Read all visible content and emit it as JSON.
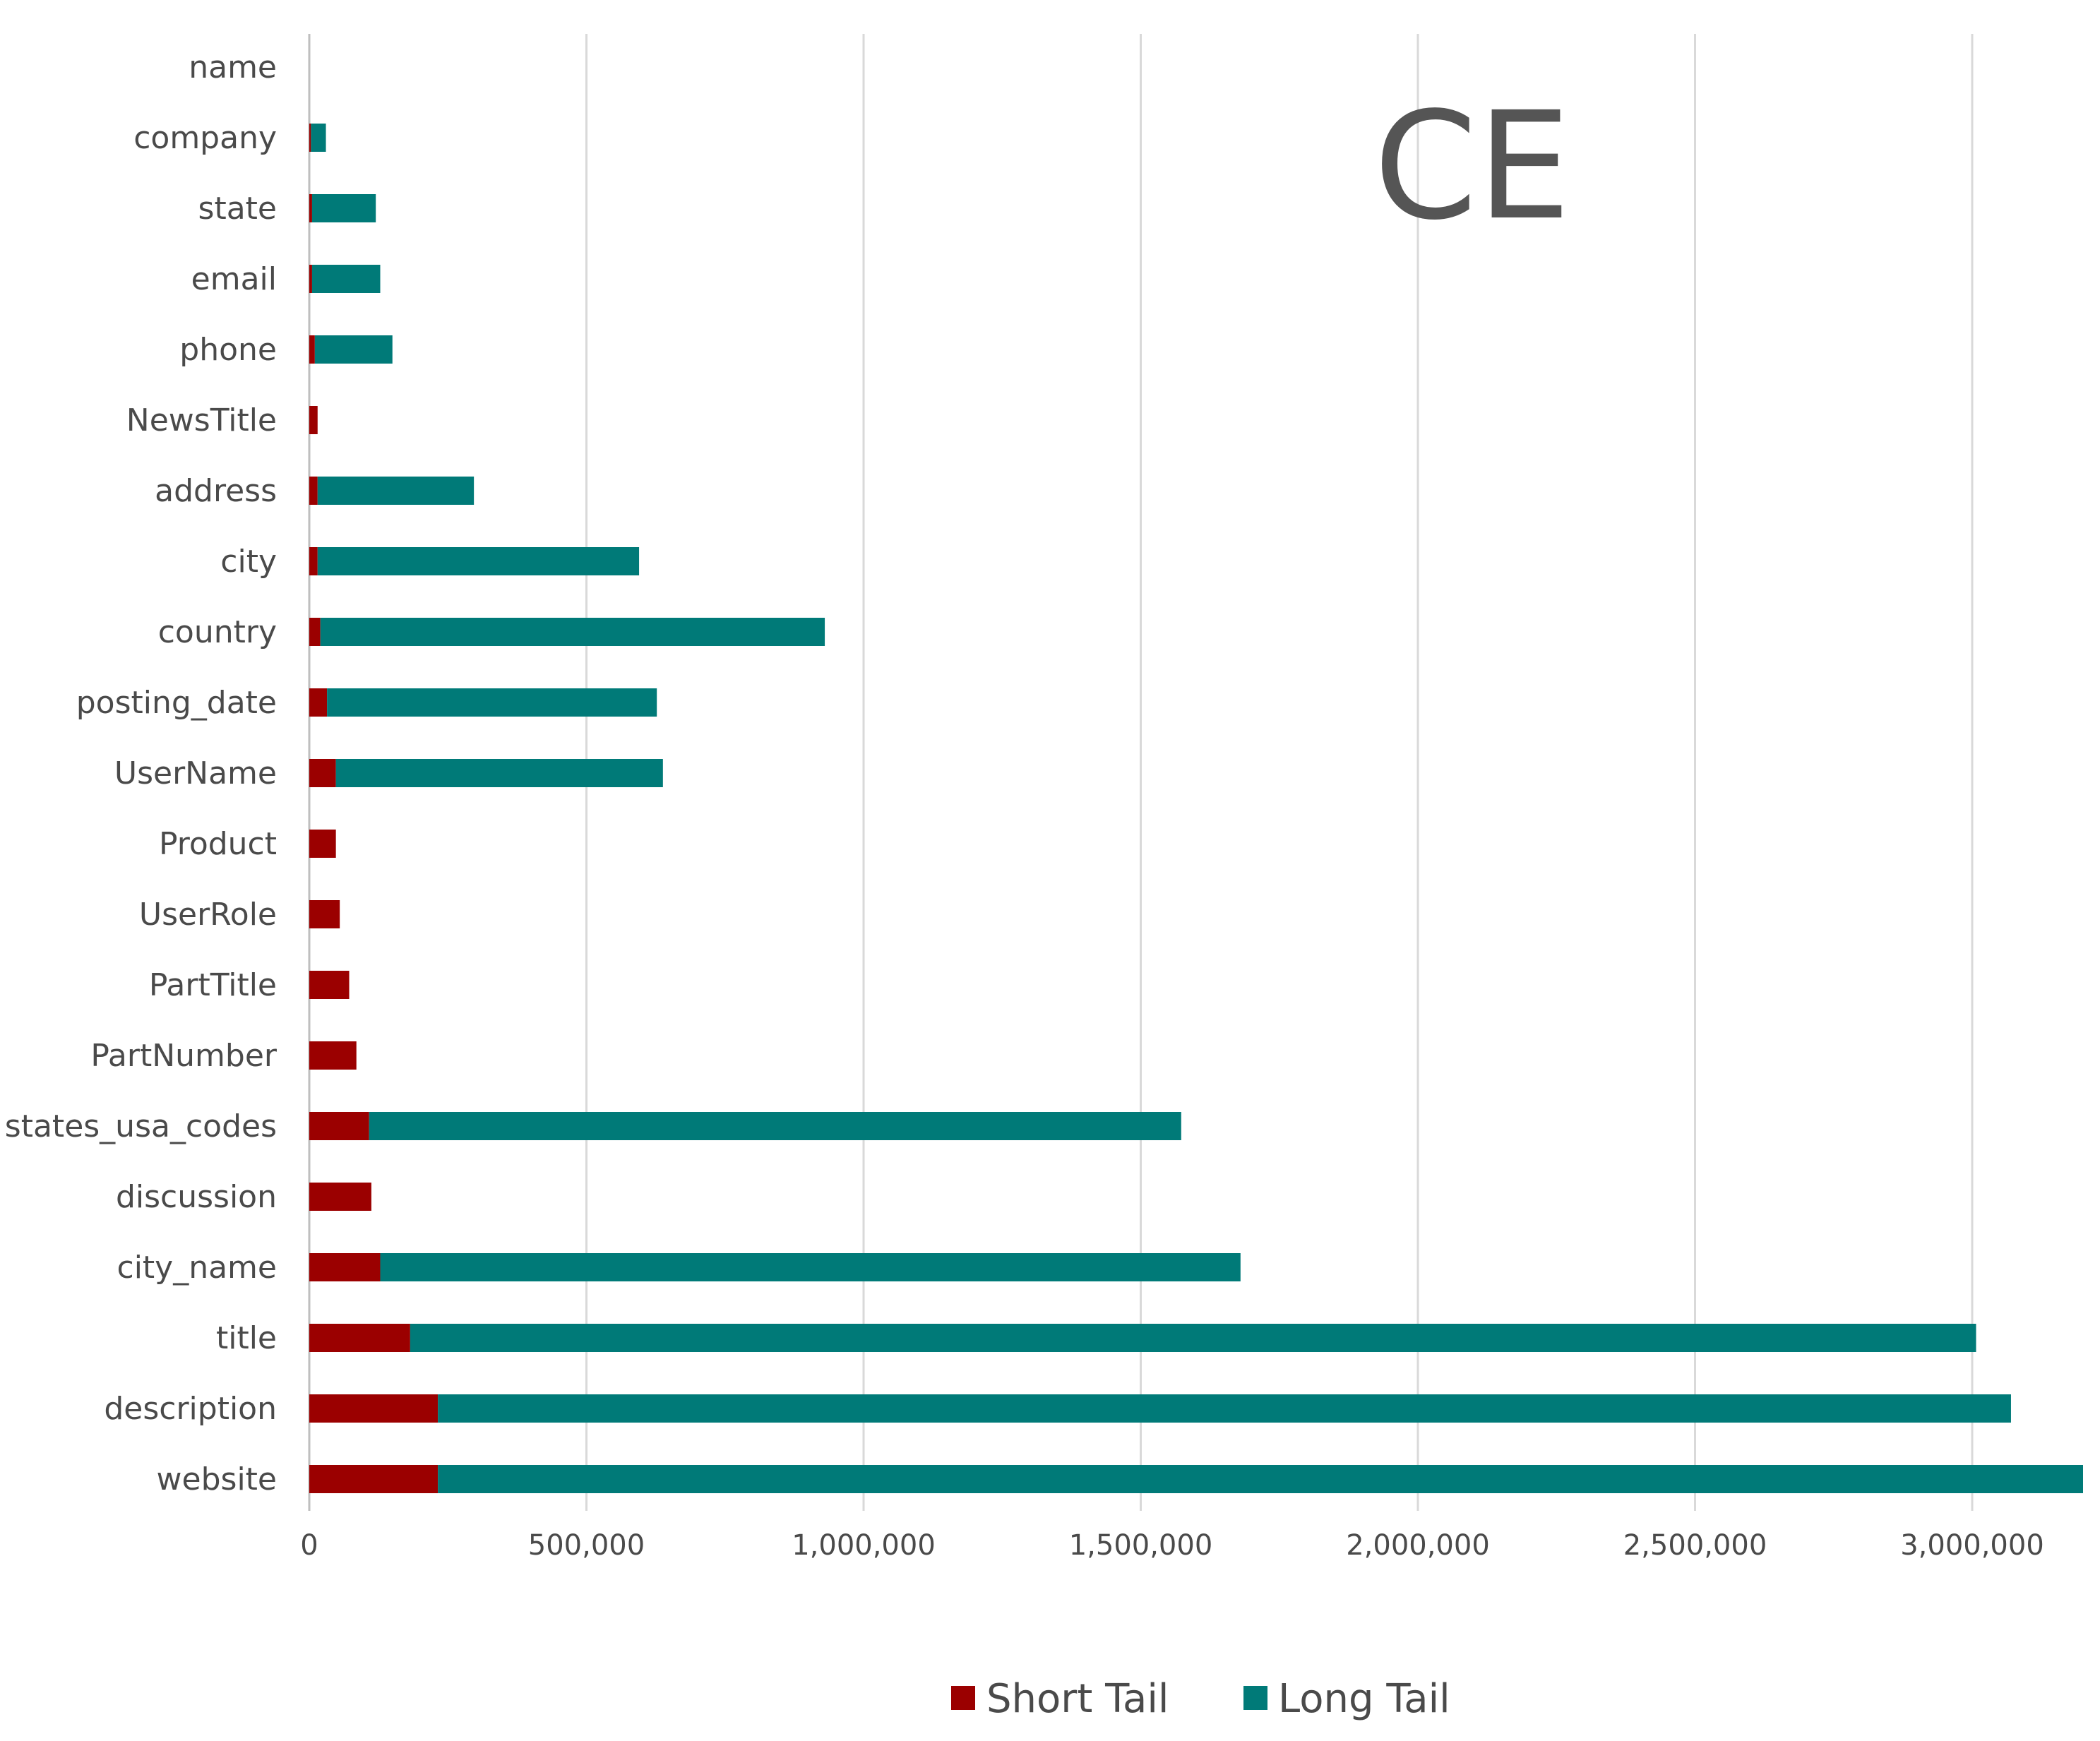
{
  "chart_data": {
    "type": "bar",
    "orientation": "horizontal",
    "stacked": true,
    "title": "CE",
    "xlabel": "",
    "ylabel": "",
    "xlim": [
      0,
      3200000
    ],
    "x_ticks": [
      0,
      500000,
      1000000,
      1500000,
      2000000,
      2500000,
      3000000
    ],
    "x_tick_labels": [
      "0",
      "500,000",
      "1,000,000",
      "1,500,000",
      "2,000,000",
      "2,500,000",
      "3,000,000"
    ],
    "grid": true,
    "legend_position": "bottom",
    "categories": [
      "name",
      "company",
      "state",
      "email",
      "phone",
      "NewsTitle",
      "address",
      "city",
      "country",
      "posting_date",
      "UserName",
      "Product",
      "UserRole",
      "PartTitle",
      "PartNumber",
      "states_usa_codes",
      "discussion",
      "city_name",
      "title",
      "description",
      "website"
    ],
    "series": [
      {
        "name": "Short Tail",
        "color": "#9b0000",
        "values": [
          0,
          3000,
          5000,
          5000,
          10000,
          15000,
          15000,
          15000,
          20000,
          32000,
          48000,
          48000,
          55000,
          72000,
          85000,
          108000,
          112000,
          128000,
          182000,
          232000,
          232000
        ]
      },
      {
        "name": "Long Tail",
        "color": "#007a78",
        "values": [
          0,
          27000,
          115000,
          123000,
          140000,
          0,
          282000,
          580000,
          910000,
          595000,
          590000,
          0,
          0,
          0,
          0,
          1465000,
          0,
          1552000,
          2825000,
          2838000,
          2968000
        ]
      }
    ]
  },
  "colors": {
    "grid": "#d9d9d9",
    "axis": "#bfbfbf",
    "text": "#4a4a4a",
    "title": "#555555"
  }
}
